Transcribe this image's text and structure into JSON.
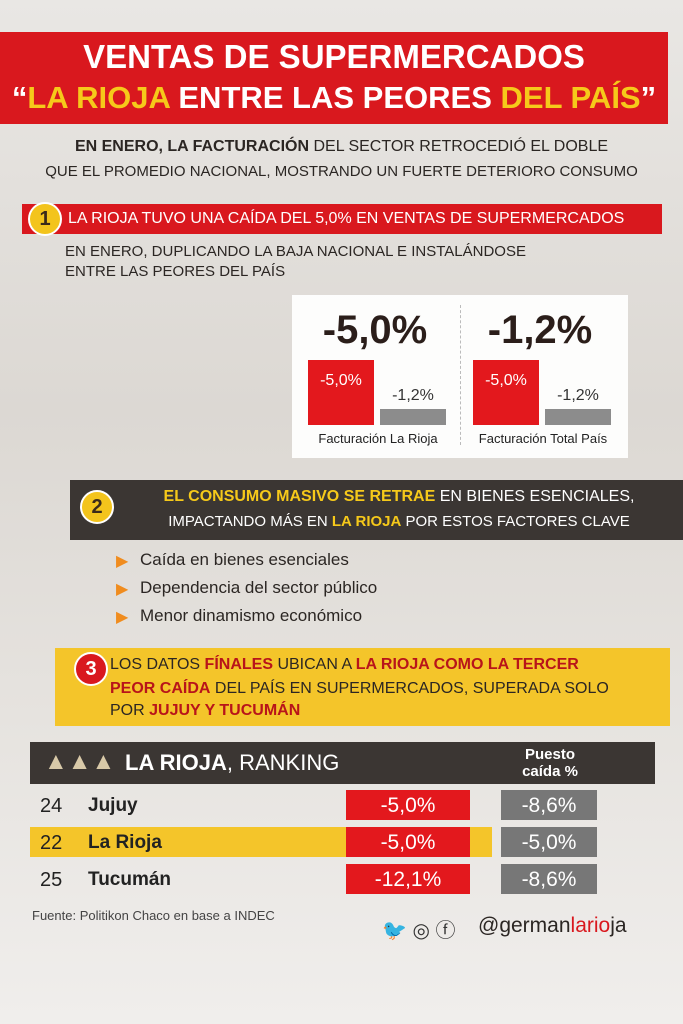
{
  "header": {
    "title": "VENTAS DE SUPERMERCADOS",
    "subtitle": [
      "“",
      "LA RIOJA",
      " ENTRE LAS PEORES ",
      "DEL PAÍS",
      "”"
    ]
  },
  "intro": [
    [
      "EN ENERO, LA FACTURACIÓN",
      " DEL SECTOR RETROCEDIÓ EL DOBLE"
    ],
    [
      "QUE EL PROMEDIO NACIONAL, MOSTRANDO UN FUERTE DETERIORO CONSUMO"
    ]
  ],
  "section1": {
    "number": "1",
    "heading": "LA RIOJA TUVO UNA CAÍDA DEL 5,0% EN VENTAS DE SUPERMERCADOS",
    "text": [
      "EN ENERO, DUPLICANDO LA BAJA NACIONAL E INSTALÁNDOSE",
      "ENTRE LAS PEORES DEL PAÍS"
    ]
  },
  "panels": [
    {
      "headline": {
        "value": -5.0,
        "label": "-5,0%"
      },
      "bars": [
        {
          "value": -5.0,
          "label": "-5,0%",
          "color": "#e3181d"
        },
        {
          "value": -1.2,
          "label": "-1,2%",
          "color": "#8c8c8c"
        }
      ],
      "caption": "Facturación La Rioja"
    },
    {
      "headline": {
        "value": -1.2,
        "label": "-1,2%"
      },
      "bars": [
        {
          "value": -5.0,
          "label": "-5,0%",
          "color": "#e3181d"
        },
        {
          "value": -1.2,
          "label": "-1,2%",
          "color": "#8c8c8c"
        }
      ],
      "caption": "Facturación Total País"
    }
  ],
  "section2": {
    "number": "2",
    "lines": [
      [
        "EL CONSUMO MASIVO SE RETRAE",
        " EN BIENES ESENCIALES,"
      ],
      [
        "IMPACTANDO MÁS EN ",
        "LA RIOJA",
        " POR ESTOS FACTORES CLAVE"
      ]
    ],
    "bullets": [
      "Caída en bienes esenciales",
      "Dependencia del sector público",
      "Menor dinamismo económico"
    ]
  },
  "section3": {
    "number": "3",
    "lines": [
      [
        "LOS DATOS ",
        "FÍNALES",
        " UBICAN A ",
        "LA RIOJA COMO LA TERCER"
      ],
      [
        "PEOR CAÍDA",
        " DEL PAÍS EN SUPERMERCADOS, SUPERADA SOLO"
      ],
      [
        "POR ",
        "JUJUY Y TUCUMÁN"
      ]
    ]
  },
  "ranking": {
    "title": [
      "LA RIOJA",
      ", RANKING"
    ],
    "column_header": [
      "Puesto",
      "caída %"
    ],
    "rows": [
      {
        "rank": 24,
        "name": "Jujuy",
        "values": [
          {
            "value": -5.0,
            "label": "-5,0%"
          },
          {
            "value": -8.6,
            "label": "-8,6%"
          }
        ]
      },
      {
        "rank": 22,
        "name": "La Rioja",
        "values": [
          {
            "value": -5.0,
            "label": "-5,0%"
          },
          {
            "value": -5.0,
            "label": "-5,0%"
          }
        ]
      },
      {
        "rank": 25,
        "name": "Tucumán",
        "values": [
          {
            "value": -12.1,
            "label": "-12,1%"
          },
          {
            "value": -8.6,
            "label": "-8,6%"
          }
        ]
      }
    ]
  },
  "footer": {
    "source": "Fuente: Politikon Chaco en base a INDEC",
    "handle": [
      "@german",
      "lario",
      "ja"
    ]
  }
}
